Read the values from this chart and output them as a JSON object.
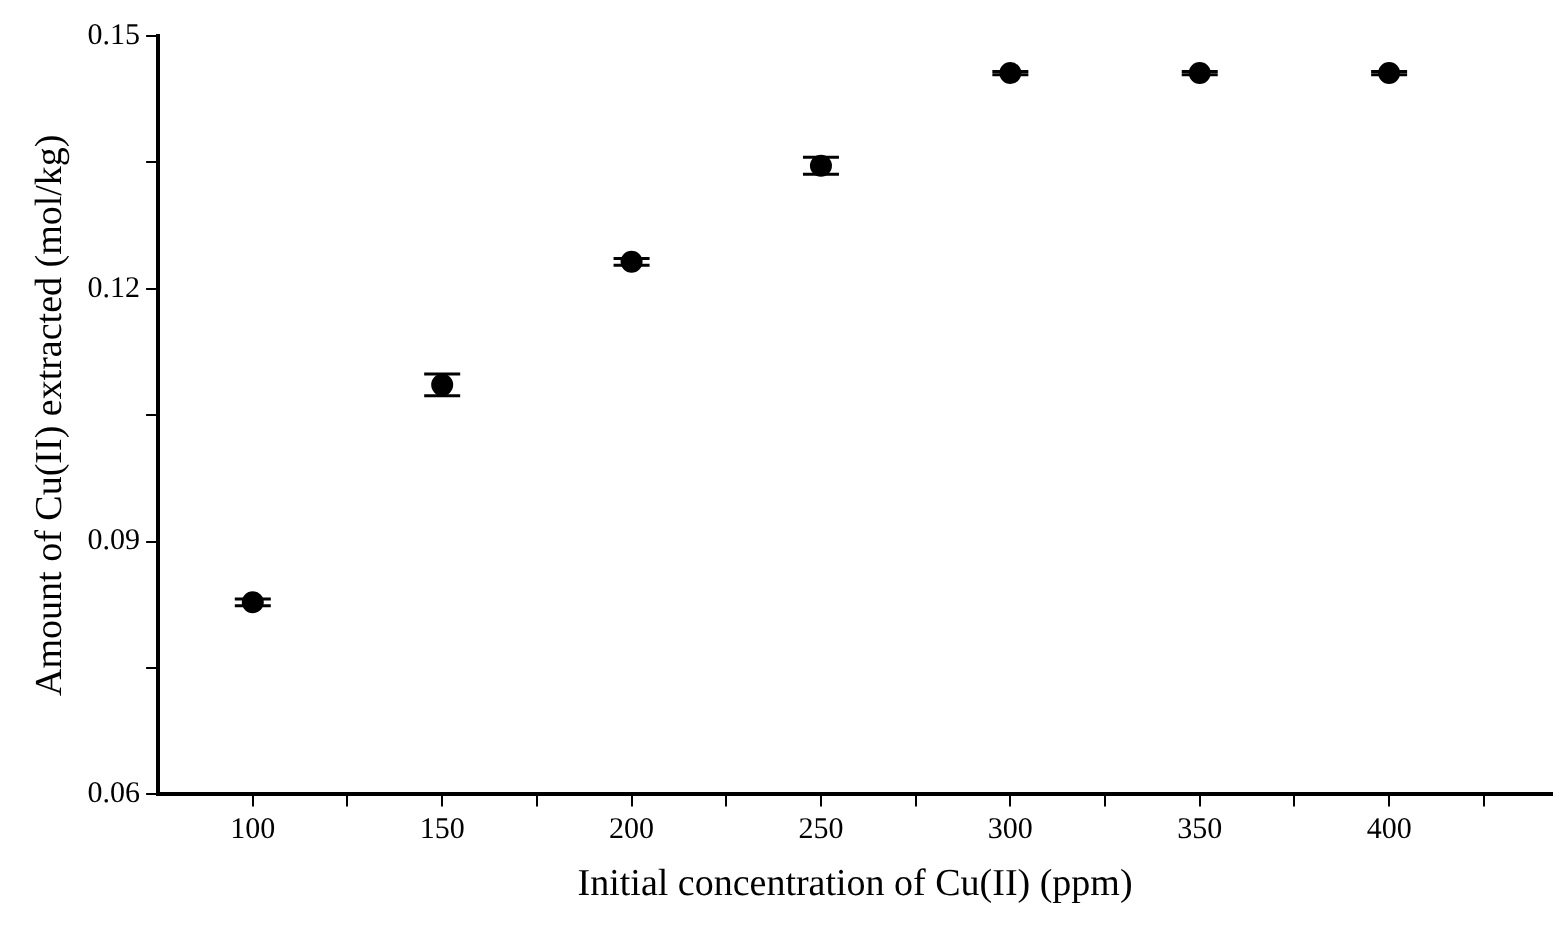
{
  "chart_data": {
    "type": "scatter",
    "xlabel": "Initial concentration of Cu(II) (ppm)",
    "ylabel": "Amount of Cu(II) extracted (mol/kg)",
    "x": [
      100,
      150,
      200,
      250,
      300,
      350,
      400
    ],
    "values": [
      0.0828,
      0.1086,
      0.1232,
      0.1346,
      0.1456,
      0.1456,
      0.1456
    ],
    "errors": [
      0.0004,
      0.0013,
      0.0004,
      0.001,
      0.0002,
      0.0002,
      0.0002
    ],
    "color": "#000000",
    "marker": "circle",
    "grid": false,
    "legend": false,
    "xlim": [
      75,
      443
    ],
    "xticks": [
      100,
      {
        "value": 125,
        "label": null
      },
      150,
      {
        "value": 175,
        "label": null
      },
      200,
      {
        "value": 225,
        "label": null
      },
      250,
      {
        "value": 275,
        "label": null
      },
      300,
      {
        "value": 325,
        "label": null
      },
      350,
      {
        "value": 375,
        "label": null
      },
      400,
      {
        "value": 425,
        "label": null
      }
    ],
    "ylim": [
      0.06,
      0.15
    ],
    "yticks": [
      {
        "value": 0.06,
        "label": "0.06"
      },
      {
        "value": 0.075,
        "label": null
      },
      {
        "value": 0.09,
        "label": "0.09"
      },
      {
        "value": 0.105,
        "label": null
      },
      {
        "value": 0.12,
        "label": "0.12"
      },
      {
        "value": 0.135,
        "label": null
      },
      {
        "value": 0.15,
        "label": "0.15"
      }
    ]
  }
}
